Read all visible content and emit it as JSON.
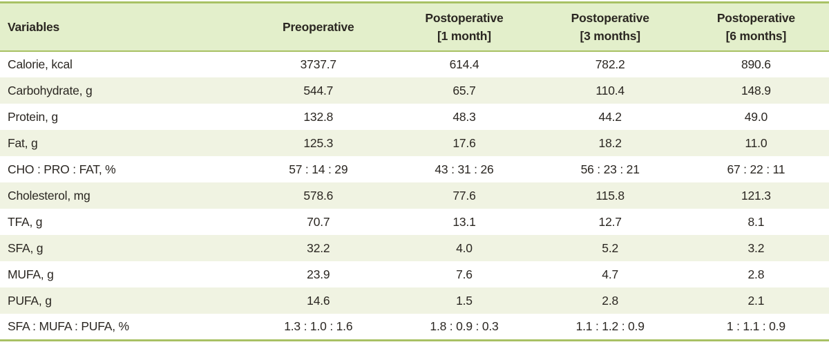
{
  "colors": {
    "accent_border": "#a8c164",
    "header_bg": "#e3efcb",
    "stripe_bg": "#f0f3e2",
    "text": "#2b2722"
  },
  "chart_data": {
    "type": "table",
    "columns": [
      {
        "title": "Variables",
        "subtitle": ""
      },
      {
        "title": "Preoperative",
        "subtitle": ""
      },
      {
        "title": "Postoperative",
        "subtitle": "[1 month]"
      },
      {
        "title": "Postoperative",
        "subtitle": "[3 months]"
      },
      {
        "title": "Postoperative",
        "subtitle": "[6 months]"
      }
    ],
    "rows": [
      {
        "label": "Calorie, kcal",
        "values": [
          "3737.7",
          "614.4",
          "782.2",
          "890.6"
        ]
      },
      {
        "label": "Carbohydrate, g",
        "values": [
          "544.7",
          "65.7",
          "110.4",
          "148.9"
        ]
      },
      {
        "label": "Protein, g",
        "values": [
          "132.8",
          "48.3",
          "44.2",
          "49.0"
        ]
      },
      {
        "label": "Fat, g",
        "values": [
          "125.3",
          "17.6",
          "18.2",
          "11.0"
        ]
      },
      {
        "label": "CHO : PRO : FAT, %",
        "values": [
          "57 : 14 : 29",
          "43 : 31 : 26",
          "56 : 23 : 21",
          "67 : 22 : 11"
        ]
      },
      {
        "label": "Cholesterol, mg",
        "values": [
          "578.6",
          "77.6",
          "115.8",
          "121.3"
        ]
      },
      {
        "label": "TFA, g",
        "values": [
          "70.7",
          "13.1",
          "12.7",
          "8.1"
        ]
      },
      {
        "label": "SFA, g",
        "values": [
          "32.2",
          "4.0",
          "5.2",
          "3.2"
        ]
      },
      {
        "label": "MUFA, g",
        "values": [
          "23.9",
          "7.6",
          "4.7",
          "2.8"
        ]
      },
      {
        "label": "PUFA, g",
        "values": [
          "14.6",
          "1.5",
          "2.8",
          "2.1"
        ]
      },
      {
        "label": "SFA : MUFA : PUFA, %",
        "values": [
          "1.3 : 1.0 : 1.6",
          "1.8 : 0.9 : 0.3",
          "1.1 : 1.2 : 0.9",
          "1 : 1.1 : 0.9"
        ]
      }
    ]
  }
}
